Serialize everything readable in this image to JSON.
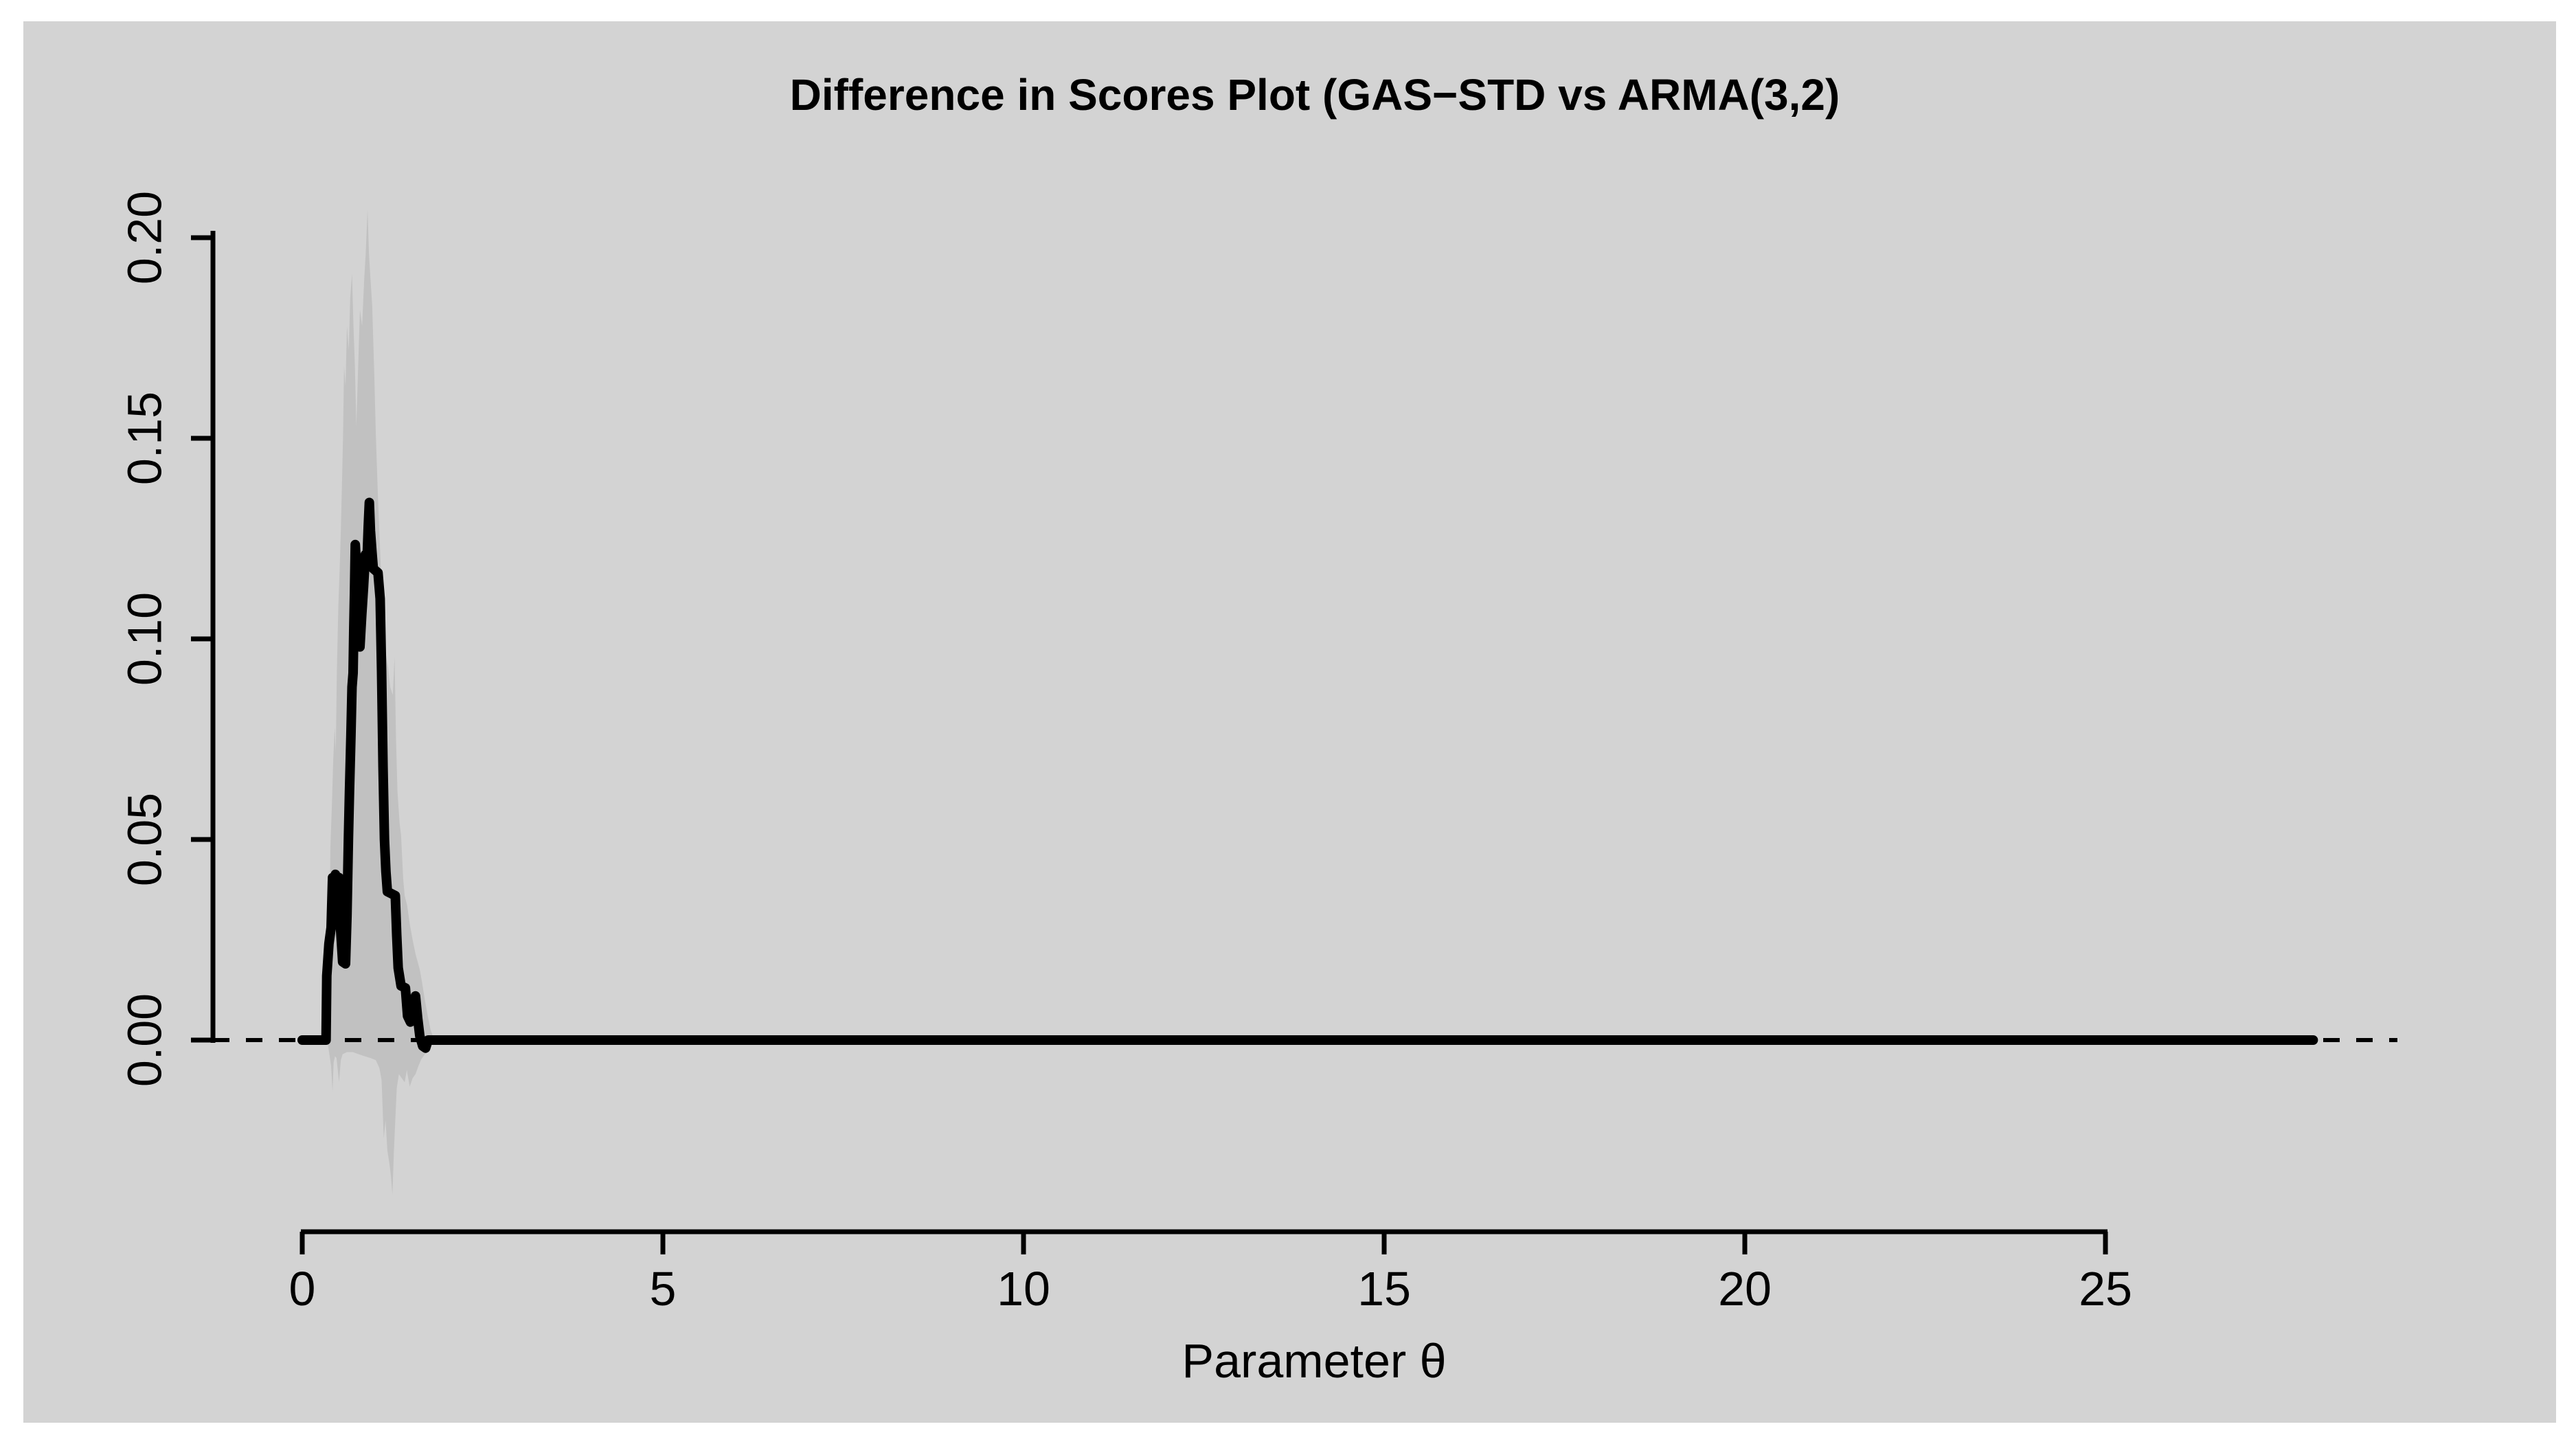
{
  "chart_data": {
    "type": "line",
    "title": "Difference in Scores Plot (GAS−STD vs ARMA(3,2)",
    "xlabel": "Parameter θ",
    "ylabel": "",
    "xlim": [
      -1.2,
      29.1
    ],
    "ylim": [
      -0.045,
      0.21
    ],
    "x_ticks": [
      0,
      5,
      10,
      15,
      20,
      25
    ],
    "y_ticks": [
      "0.00",
      "0.05",
      "0.10",
      "0.15",
      "0.20"
    ],
    "y_tick_values": [
      0,
      0.05,
      0.1,
      0.15,
      0.2
    ],
    "grid": false,
    "legend": "none",
    "zero_line": {
      "y": 0,
      "style": "dashed"
    },
    "colors": {
      "outer_background": "#ffffff",
      "panel_background": "#d3d3d3",
      "line": "#000000",
      "band": "#c1c1c1",
      "axis": "#000000"
    },
    "series": [
      {
        "name": "confidence-band",
        "type": "band",
        "upper": [
          [
            0.355,
            0.002
          ],
          [
            0.375,
            0.02
          ],
          [
            0.39,
            0.048
          ],
          [
            0.41,
            0.058
          ],
          [
            0.43,
            0.07
          ],
          [
            0.45,
            0.078
          ],
          [
            0.465,
            0.072
          ],
          [
            0.48,
            0.092
          ],
          [
            0.5,
            0.108
          ],
          [
            0.52,
            0.118
          ],
          [
            0.535,
            0.127
          ],
          [
            0.55,
            0.138
          ],
          [
            0.565,
            0.15
          ],
          [
            0.58,
            0.168
          ],
          [
            0.6,
            0.163
          ],
          [
            0.62,
            0.178
          ],
          [
            0.645,
            0.172
          ],
          [
            0.665,
            0.185
          ],
          [
            0.69,
            0.191
          ],
          [
            0.71,
            0.178
          ],
          [
            0.73,
            0.168
          ],
          [
            0.75,
            0.153
          ],
          [
            0.77,
            0.165
          ],
          [
            0.8,
            0.182
          ],
          [
            0.83,
            0.178
          ],
          [
            0.86,
            0.19
          ],
          [
            0.88,
            0.196
          ],
          [
            0.905,
            0.207
          ],
          [
            0.925,
            0.196
          ],
          [
            0.945,
            0.19
          ],
          [
            0.97,
            0.183
          ],
          [
            1.0,
            0.165
          ],
          [
            1.02,
            0.151
          ],
          [
            1.05,
            0.135
          ],
          [
            1.08,
            0.122
          ],
          [
            1.1,
            0.113
          ],
          [
            1.13,
            0.103
          ],
          [
            1.16,
            0.096
          ],
          [
            1.19,
            0.093
          ],
          [
            1.22,
            0.088
          ],
          [
            1.255,
            0.086
          ],
          [
            1.28,
            0.0955
          ],
          [
            1.3,
            0.075
          ],
          [
            1.32,
            0.062
          ],
          [
            1.35,
            0.054
          ],
          [
            1.37,
            0.051
          ],
          [
            1.4,
            0.04
          ],
          [
            1.42,
            0.036
          ],
          [
            1.455,
            0.0335
          ],
          [
            1.49,
            0.029
          ],
          [
            1.53,
            0.025
          ],
          [
            1.57,
            0.0215
          ],
          [
            1.6,
            0.0195
          ],
          [
            1.63,
            0.0175
          ],
          [
            1.66,
            0.0145
          ],
          [
            1.7,
            0.01
          ],
          [
            1.74,
            0.006
          ],
          [
            1.78,
            0.0025
          ],
          [
            1.82,
            0.0005
          ]
        ],
        "lower": [
          [
            0.355,
            -0.001
          ],
          [
            0.38,
            -0.004
          ],
          [
            0.4,
            -0.0065
          ],
          [
            0.42,
            -0.0128
          ],
          [
            0.435,
            -0.0055
          ],
          [
            0.455,
            -0.004
          ],
          [
            0.475,
            -0.0045
          ],
          [
            0.51,
            -0.0104
          ],
          [
            0.535,
            -0.005
          ],
          [
            0.56,
            -0.0035
          ],
          [
            0.62,
            -0.003
          ],
          [
            0.7,
            -0.003
          ],
          [
            0.78,
            -0.0035
          ],
          [
            0.86,
            -0.004
          ],
          [
            0.95,
            -0.0045
          ],
          [
            1.02,
            -0.005
          ],
          [
            1.07,
            -0.007
          ],
          [
            1.1,
            -0.01
          ],
          [
            1.13,
            -0.0245
          ],
          [
            1.155,
            -0.02
          ],
          [
            1.18,
            -0.0275
          ],
          [
            1.21,
            -0.031
          ],
          [
            1.23,
            -0.034
          ],
          [
            1.25,
            -0.0385
          ],
          [
            1.27,
            -0.028
          ],
          [
            1.29,
            -0.02
          ],
          [
            1.31,
            -0.012
          ],
          [
            1.34,
            -0.0085
          ],
          [
            1.38,
            -0.0095
          ],
          [
            1.42,
            -0.0105
          ],
          [
            1.45,
            -0.0075
          ],
          [
            1.49,
            -0.0116
          ],
          [
            1.53,
            -0.0095
          ],
          [
            1.57,
            -0.0085
          ],
          [
            1.61,
            -0.0065
          ],
          [
            1.65,
            -0.0048
          ],
          [
            1.7,
            -0.0035
          ],
          [
            1.75,
            -0.0022
          ],
          [
            1.8,
            -0.001
          ],
          [
            1.82,
            -0.0003
          ]
        ]
      },
      {
        "name": "score-difference",
        "type": "line",
        "points": [
          [
            0,
            0
          ],
          [
            0.33,
            0
          ],
          [
            0.34,
            0.016
          ],
          [
            0.37,
            0.024
          ],
          [
            0.4,
            0.028
          ],
          [
            0.42,
            0.0405
          ],
          [
            0.445,
            0.034
          ],
          [
            0.46,
            0.0413
          ],
          [
            0.49,
            0.036
          ],
          [
            0.51,
            0.0405
          ],
          [
            0.53,
            0.028
          ],
          [
            0.56,
            0.0195
          ],
          [
            0.6,
            0.019
          ],
          [
            0.62,
            0.031
          ],
          [
            0.64,
            0.05
          ],
          [
            0.655,
            0.062
          ],
          [
            0.675,
            0.076
          ],
          [
            0.69,
            0.088
          ],
          [
            0.705,
            0.0915
          ],
          [
            0.715,
            0.103
          ],
          [
            0.725,
            0.112
          ],
          [
            0.735,
            0.1235
          ],
          [
            0.755,
            0.117
          ],
          [
            0.775,
            0.107
          ],
          [
            0.8,
            0.098
          ],
          [
            0.825,
            0.106
          ],
          [
            0.85,
            0.113
          ],
          [
            0.875,
            0.121
          ],
          [
            0.9,
            0.1205
          ],
          [
            0.915,
            0.128
          ],
          [
            0.93,
            0.134
          ],
          [
            0.945,
            0.127
          ],
          [
            0.965,
            0.122
          ],
          [
            0.985,
            0.1175
          ],
          [
            1.05,
            0.1165
          ],
          [
            1.08,
            0.11
          ],
          [
            1.1,
            0.092
          ],
          [
            1.12,
            0.068
          ],
          [
            1.14,
            0.05
          ],
          [
            1.16,
            0.042
          ],
          [
            1.18,
            0.037
          ],
          [
            1.29,
            0.036
          ],
          [
            1.31,
            0.026
          ],
          [
            1.33,
            0.018
          ],
          [
            1.37,
            0.0135
          ],
          [
            1.43,
            0.013
          ],
          [
            1.46,
            0.006
          ],
          [
            1.5,
            0.0045
          ],
          [
            1.54,
            0.009
          ],
          [
            1.57,
            0.011
          ],
          [
            1.6,
            0.0055
          ],
          [
            1.63,
            0.001
          ],
          [
            1.67,
            -0.0015
          ],
          [
            1.71,
            -0.002
          ],
          [
            1.745,
            0
          ],
          [
            27.88,
            0
          ]
        ]
      }
    ]
  }
}
